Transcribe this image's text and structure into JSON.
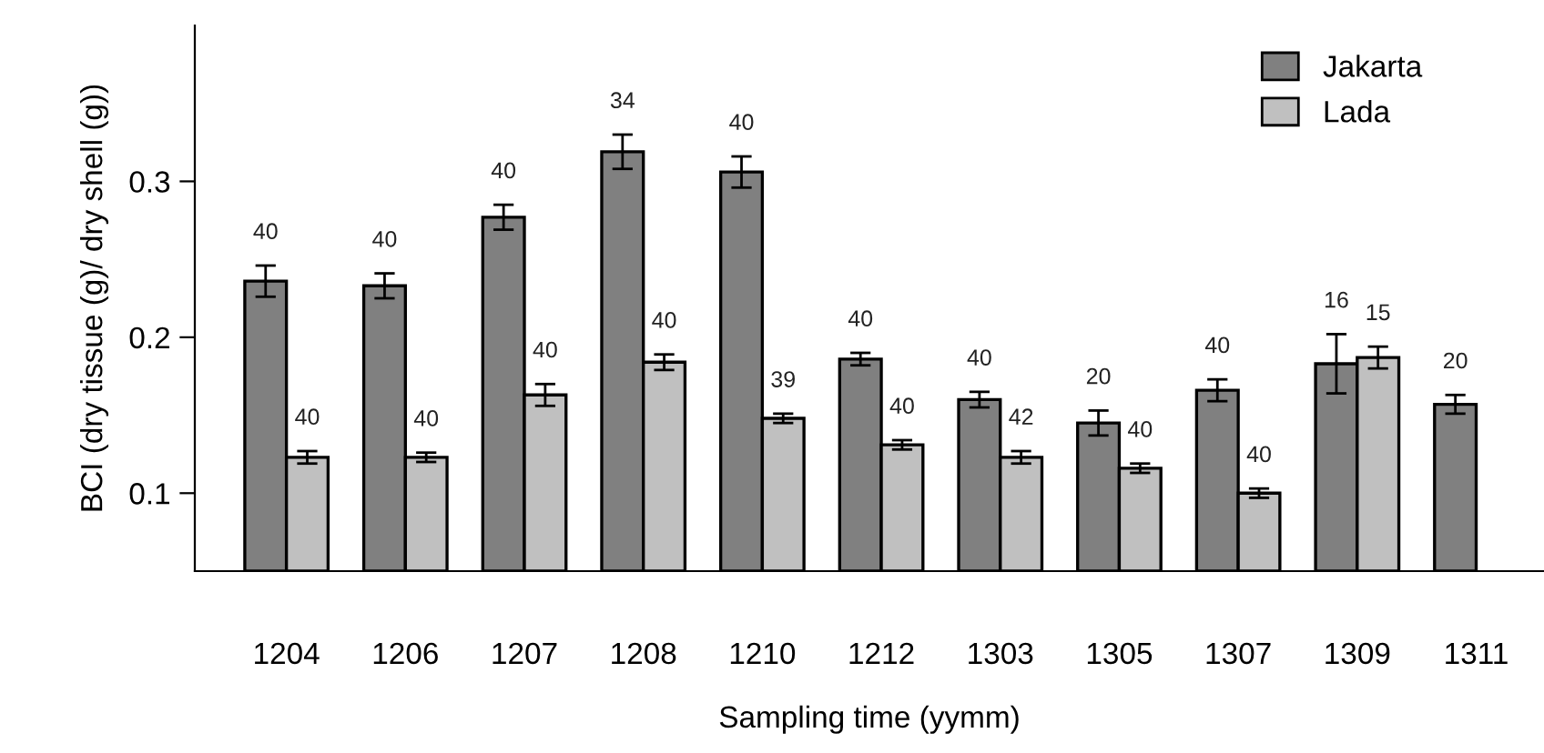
{
  "chart_data": {
    "type": "bar",
    "xlabel": "Sampling time (yymm)",
    "ylabel": "BCI (dry tissue (g)/ dry shell (g))",
    "categories": [
      "1204",
      "1206",
      "1207",
      "1208",
      "1210",
      "1212",
      "1303",
      "1305",
      "1307",
      "1309",
      "1311"
    ],
    "series": [
      {
        "name": "Jakarta",
        "color": "#808080",
        "values": [
          0.236,
          0.233,
          0.277,
          0.319,
          0.306,
          0.186,
          0.16,
          0.145,
          0.166,
          0.183,
          0.157
        ],
        "errors": [
          0.01,
          0.008,
          0.008,
          0.011,
          0.01,
          0.004,
          0.005,
          0.008,
          0.007,
          0.019,
          0.006
        ]
      },
      {
        "name": "Lada",
        "color": "#c0c0c0",
        "values": [
          0.123,
          0.123,
          0.163,
          0.184,
          0.148,
          0.131,
          0.123,
          0.116,
          0.1,
          0.187,
          null
        ],
        "errors": [
          0.004,
          0.003,
          0.007,
          0.005,
          0.003,
          0.003,
          0.004,
          0.003,
          0.003,
          0.007,
          null
        ]
      }
    ],
    "annotations": [
      {
        "text": "40",
        "x": "1204",
        "y": 0.236
      },
      {
        "text": "40",
        "x": "1204",
        "y": 0.123
      },
      {
        "text": "40",
        "x": "1206",
        "y": 0.233
      },
      {
        "text": "40",
        "x": "1206",
        "y": 0.123
      },
      {
        "text": "40",
        "x": "1207",
        "y": 0.277
      },
      {
        "text": "40",
        "x": "1207",
        "y": 0.163
      },
      {
        "text": "34",
        "x": "1208",
        "y": 0.319
      },
      {
        "text": "40",
        "x": "1208",
        "y": 0.184
      },
      {
        "text": "40",
        "x": "1210",
        "y": 0.306
      },
      {
        "text": "39",
        "x": "1210",
        "y": 0.148
      },
      {
        "text": "40",
        "x": "1212",
        "y": 0.186
      },
      {
        "text": "40",
        "x": "1212",
        "y": 0.131
      },
      {
        "text": "40",
        "x": "1303",
        "y": 0.16
      },
      {
        "text": "42",
        "x": "1303",
        "y": 0.123
      },
      {
        "text": "20",
        "x": "1305",
        "y": 0.145
      },
      {
        "text": "40",
        "x": "1305",
        "y": 0.116
      },
      {
        "text": "40",
        "x": "1307",
        "y": 0.166
      },
      {
        "text": "40",
        "x": "1307",
        "y": 0.1
      },
      {
        "text": "16",
        "x": "1309",
        "y": 0.183
      },
      {
        "text": "15",
        "x": "1309",
        "y": 0.187
      },
      {
        "text": "20",
        "x": "1311",
        "y": 0.157
      }
    ],
    "ylim": [
      0.05,
      0.4
    ],
    "yticks": [
      0.1,
      0.2,
      0.3
    ],
    "grid": false,
    "legend": "top right"
  }
}
